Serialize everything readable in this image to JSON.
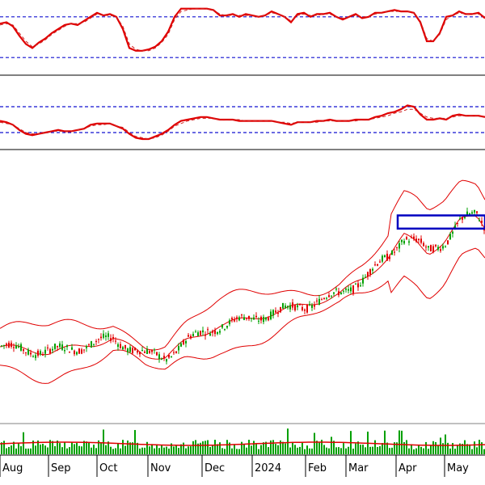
{
  "colors": {
    "main_line": "#e00000",
    "signal_line": "#d02020",
    "guide_line": "#1010d0",
    "bollinger": "#e00000",
    "candle_up": "#00a000",
    "candle_down": "#e00000",
    "volume": "#00a000",
    "box": "#0000c0",
    "separator": "#808080"
  },
  "chart_data": [
    {
      "type": "line",
      "panel": "oscillator-1",
      "x": [
        0,
        8,
        16,
        24,
        32,
        40,
        48,
        56,
        64,
        72,
        80,
        88,
        96,
        104,
        112,
        120,
        128,
        136,
        144,
        152,
        160,
        168,
        176,
        184,
        192,
        200,
        208,
        216,
        224,
        232,
        240,
        248,
        256,
        264,
        272,
        280,
        288,
        296,
        304,
        312,
        320,
        328,
        336,
        344,
        352,
        360,
        368,
        376,
        384,
        392,
        400,
        408,
        416,
        424,
        432,
        440,
        448,
        456,
        464,
        472,
        480,
        488,
        496,
        504,
        512,
        520,
        528,
        536,
        544,
        552,
        560,
        568,
        576,
        584,
        592,
        600
      ],
      "series": [
        {
          "values": [
            70,
            72,
            66,
            52,
            40,
            34,
            42,
            48,
            56,
            62,
            68,
            70,
            68,
            74,
            80,
            86,
            82,
            84,
            80,
            62,
            34,
            30,
            30,
            32,
            36,
            44,
            58,
            80,
            92,
            92,
            92,
            92,
            92,
            90,
            82,
            82,
            84,
            80,
            84,
            82,
            80,
            82,
            88,
            84,
            80,
            72,
            84,
            86,
            80,
            84,
            84,
            86,
            80,
            76,
            80,
            84,
            78,
            80,
            86,
            86,
            88,
            90,
            88,
            88,
            86,
            72,
            44,
            44,
            56,
            80,
            82,
            88,
            84,
            84,
            86,
            78
          ]
        },
        {
          "values": [
            68,
            70,
            68,
            56,
            44,
            36,
            40,
            46,
            54,
            60,
            66,
            70,
            70,
            72,
            78,
            84,
            82,
            82,
            80,
            66,
            40,
            32,
            30,
            30,
            34,
            42,
            54,
            76,
            88,
            90,
            92,
            92,
            92,
            90,
            84,
            82,
            82,
            82,
            82,
            82,
            80,
            82,
            86,
            84,
            80,
            74,
            82,
            84,
            82,
            82,
            84,
            84,
            80,
            78,
            80,
            82,
            80,
            80,
            84,
            86,
            88,
            88,
            88,
            88,
            86,
            74,
            48,
            44,
            54,
            76,
            82,
            86,
            84,
            84,
            84,
            80
          ]
        }
      ],
      "guides": [
        80,
        20
      ],
      "ylim": [
        0,
        100
      ]
    },
    {
      "type": "line",
      "panel": "oscillator-2",
      "x": [
        0,
        8,
        16,
        24,
        32,
        40,
        48,
        56,
        64,
        72,
        80,
        88,
        96,
        104,
        112,
        120,
        128,
        136,
        144,
        152,
        160,
        168,
        176,
        184,
        192,
        200,
        208,
        216,
        224,
        232,
        240,
        248,
        256,
        264,
        272,
        280,
        288,
        296,
        304,
        312,
        320,
        328,
        336,
        344,
        352,
        360,
        368,
        376,
        384,
        392,
        400,
        408,
        416,
        424,
        432,
        440,
        448,
        456,
        464,
        472,
        480,
        488,
        496,
        504,
        512,
        520,
        528,
        536,
        544,
        552,
        560,
        568,
        576,
        584,
        592,
        600
      ],
      "series": [
        {
          "values": [
            38,
            36,
            32,
            24,
            18,
            16,
            18,
            20,
            22,
            24,
            22,
            22,
            24,
            26,
            32,
            34,
            34,
            34,
            30,
            26,
            18,
            12,
            10,
            10,
            14,
            18,
            24,
            32,
            38,
            40,
            42,
            44,
            44,
            42,
            40,
            40,
            40,
            38,
            38,
            38,
            38,
            38,
            38,
            36,
            34,
            32,
            36,
            36,
            36,
            38,
            38,
            40,
            38,
            38,
            38,
            40,
            40,
            40,
            44,
            46,
            50,
            52,
            56,
            62,
            60,
            48,
            40,
            40,
            42,
            40,
            46,
            48,
            46,
            46,
            46,
            44
          ]
        },
        {
          "values": [
            36,
            34,
            32,
            26,
            20,
            18,
            18,
            20,
            22,
            22,
            22,
            22,
            24,
            26,
            30,
            32,
            32,
            34,
            30,
            28,
            20,
            14,
            12,
            10,
            12,
            16,
            22,
            30,
            34,
            38,
            40,
            42,
            42,
            42,
            40,
            40,
            40,
            40,
            38,
            38,
            38,
            38,
            38,
            36,
            36,
            34,
            36,
            36,
            36,
            36,
            38,
            38,
            38,
            38,
            38,
            38,
            40,
            40,
            42,
            44,
            46,
            50,
            52,
            56,
            56,
            50,
            44,
            42,
            42,
            42,
            44,
            46,
            46,
            46,
            46,
            44
          ]
        }
      ],
      "guides": [
        60,
        20
      ],
      "ylim": [
        0,
        100
      ]
    },
    {
      "type": "bollinger-candlestick",
      "panel": "price",
      "x_ticks": [
        "Aug",
        "Sep",
        "Oct",
        "Nov",
        "Dec",
        "2024",
        "Feb",
        "Mar",
        "Apr",
        "May"
      ],
      "box_highlight": {
        "x_start": 0.82,
        "x_end": 1.0,
        "y_low": 73,
        "y_high": 78
      },
      "ylim": [
        0,
        100
      ]
    },
    {
      "type": "bar",
      "panel": "volume",
      "ylim": [
        0,
        100
      ]
    }
  ]
}
